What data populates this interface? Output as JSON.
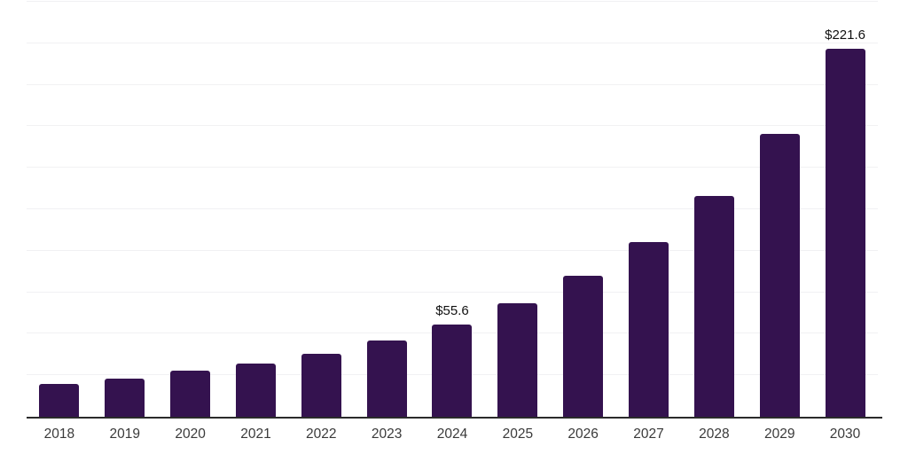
{
  "chart_data": {
    "type": "bar",
    "title": "",
    "xlabel": "",
    "ylabel": "",
    "categories": [
      "2018",
      "2019",
      "2020",
      "2021",
      "2022",
      "2023",
      "2024",
      "2025",
      "2026",
      "2027",
      "2028",
      "2029",
      "2030"
    ],
    "values": [
      19.9,
      23.0,
      27.6,
      32.2,
      37.9,
      45.9,
      55.6,
      68.3,
      84.9,
      105.2,
      132.9,
      170.4,
      221.6
    ],
    "data_labels": [
      "",
      "",
      "",
      "",
      "",
      "",
      "$55.6",
      "",
      "",
      "",
      "",
      "",
      "$221.6"
    ],
    "value_prefix": "$",
    "ylim": [
      0,
      250
    ],
    "gridline_values": [
      25,
      50,
      75,
      100,
      125,
      150,
      175,
      200,
      225,
      250
    ],
    "grid": "horizontal",
    "legend_position": "none",
    "y_axis_ticks_visible": false
  },
  "style": {
    "bar_color": "#34124f",
    "axis_line_color": "#2b2b2b",
    "gridline_color": "#f1f1f3",
    "tick_label_color": "#3a3a3a",
    "data_label_color": "#111111",
    "background_color": "#ffffff"
  }
}
